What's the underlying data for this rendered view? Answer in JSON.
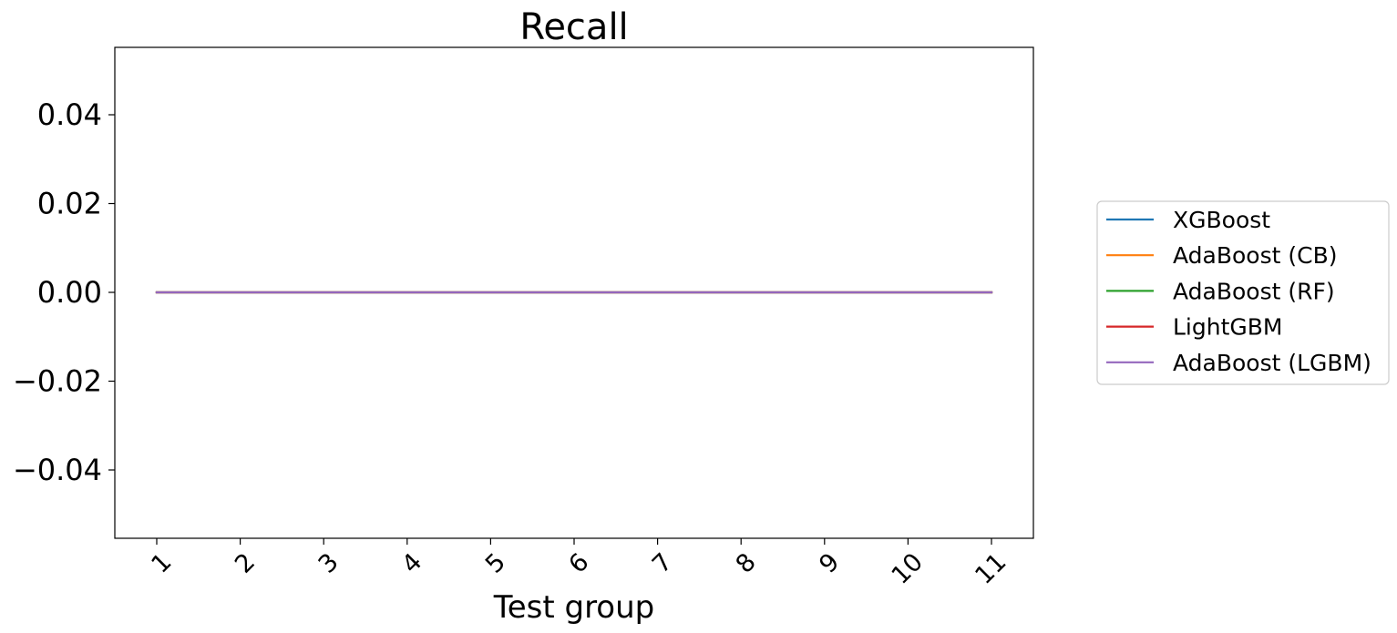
{
  "chart_data": {
    "type": "line",
    "title": "Recall",
    "xlabel": "Test group",
    "ylabel": "",
    "x": [
      1,
      2,
      3,
      4,
      5,
      6,
      7,
      8,
      9,
      10,
      11
    ],
    "x_tick_labels": [
      "1",
      "2",
      "3",
      "4",
      "5",
      "6",
      "7",
      "8",
      "9",
      "10",
      "11"
    ],
    "ylim": [
      -0.055,
      0.055
    ],
    "y_ticks": [
      -0.04,
      -0.02,
      0.0,
      0.02,
      0.04
    ],
    "y_tick_labels": [
      "−0.04",
      "−0.02",
      "0.00",
      "0.02",
      "0.04"
    ],
    "grid": false,
    "legend_placement": "right",
    "series": [
      {
        "name": "XGBoost",
        "color": "#1f77b4",
        "values": [
          0,
          0,
          0,
          0,
          0,
          0,
          0,
          0,
          0,
          0,
          0
        ]
      },
      {
        "name": "AdaBoost (CB)",
        "color": "#ff7f0e",
        "values": [
          0,
          0,
          0,
          0,
          0,
          0,
          0,
          0,
          0,
          0,
          0
        ]
      },
      {
        "name": "AdaBoost (RF)",
        "color": "#2ca02c",
        "values": [
          0,
          0,
          0,
          0,
          0,
          0,
          0,
          0,
          0,
          0,
          0
        ]
      },
      {
        "name": "LightGBM",
        "color": "#d62728",
        "values": [
          0,
          0,
          0,
          0,
          0,
          0,
          0,
          0,
          0,
          0,
          0
        ]
      },
      {
        "name": "AdaBoost (LGBM)",
        "color": "#9467bd",
        "values": [
          0,
          0,
          0,
          0,
          0,
          0,
          0,
          0,
          0,
          0,
          0
        ]
      }
    ]
  }
}
